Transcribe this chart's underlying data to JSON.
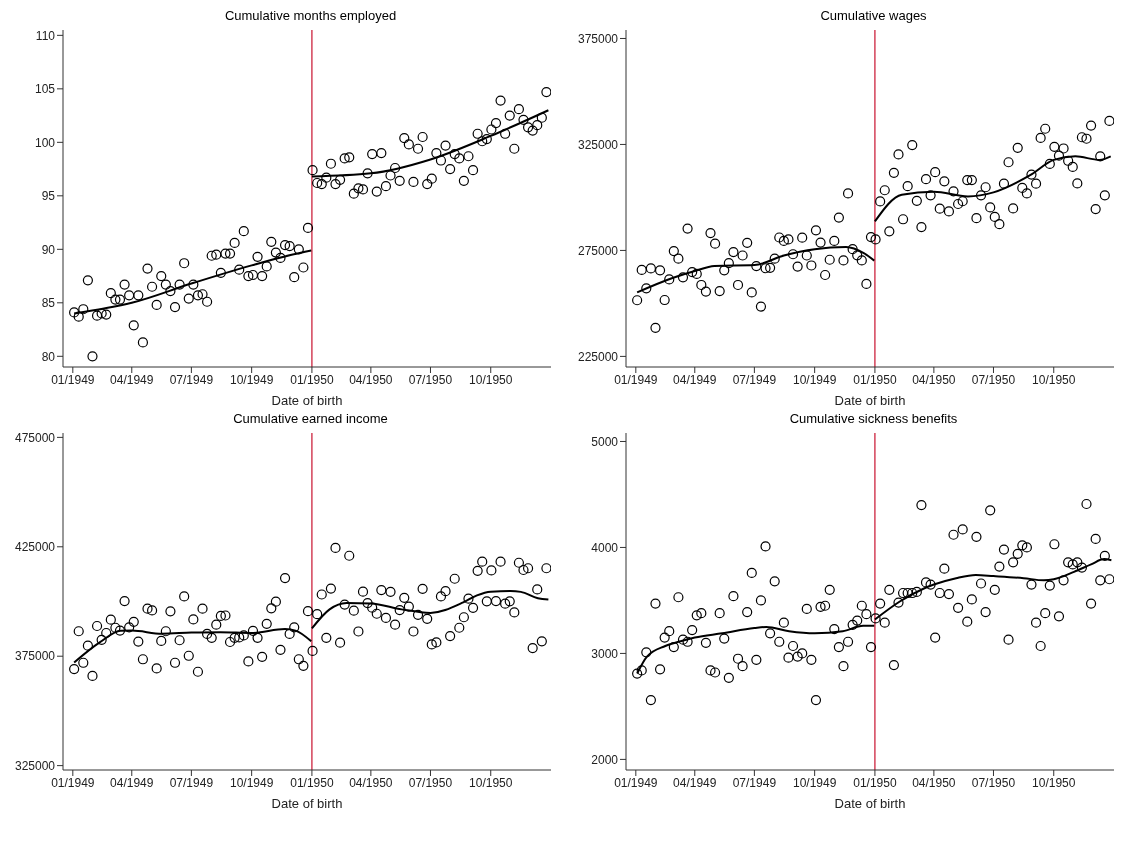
{
  "chart_data": [
    {
      "type": "scatter",
      "title": "Cumulative months employed",
      "xlabel": "Date of birth",
      "x": [
        "1949-01-03",
        "1949-01-10",
        "1949-01-17",
        "1949-01-24",
        "1949-01-31",
        "1949-02-07",
        "1949-02-14",
        "1949-02-21",
        "1949-02-28",
        "1949-03-07",
        "1949-03-14",
        "1949-03-21",
        "1949-03-28",
        "1949-04-04",
        "1949-04-11",
        "1949-04-18",
        "1949-04-25",
        "1949-05-02",
        "1949-05-09",
        "1949-05-16",
        "1949-05-23",
        "1949-05-30",
        "1949-06-06",
        "1949-06-13",
        "1949-06-20",
        "1949-06-27",
        "1949-07-04",
        "1949-07-11",
        "1949-07-18",
        "1949-07-25",
        "1949-08-01",
        "1949-08-08",
        "1949-08-15",
        "1949-08-22",
        "1949-08-29",
        "1949-09-05",
        "1949-09-12",
        "1949-09-19",
        "1949-09-26",
        "1949-10-03",
        "1949-10-10",
        "1949-10-17",
        "1949-10-24",
        "1949-10-31",
        "1949-11-07",
        "1949-11-14",
        "1949-11-21",
        "1949-11-28",
        "1949-12-05",
        "1949-12-12",
        "1949-12-19",
        "1949-12-26",
        "1950-01-02",
        "1950-01-09",
        "1950-01-16",
        "1950-01-23",
        "1950-01-30",
        "1950-02-06",
        "1950-02-13",
        "1950-02-20",
        "1950-02-27",
        "1950-03-06",
        "1950-03-13",
        "1950-03-20",
        "1950-03-27",
        "1950-04-03",
        "1950-04-10",
        "1950-04-17",
        "1950-04-24",
        "1950-05-01",
        "1950-05-08",
        "1950-05-15",
        "1950-05-22",
        "1950-05-29",
        "1950-06-05",
        "1950-06-12",
        "1950-06-19",
        "1950-06-26",
        "1950-07-03",
        "1950-07-10",
        "1950-07-17",
        "1950-07-24",
        "1950-07-31",
        "1950-08-07",
        "1950-08-14",
        "1950-08-21",
        "1950-08-28",
        "1950-09-04",
        "1950-09-11",
        "1950-09-18",
        "1950-09-25",
        "1950-10-02",
        "1950-10-09",
        "1950-10-16",
        "1950-10-23",
        "1950-10-30",
        "1950-11-06",
        "1950-11-13",
        "1950-11-20",
        "1950-11-27",
        "1950-12-04",
        "1950-12-11",
        "1950-12-18",
        "1950-12-25"
      ],
      "series": [
        {
          "type": "scatter",
          "marker": "circle",
          "color": "#000000",
          "values": [
            84.1,
            83.7,
            84.4,
            87.1,
            80.0,
            83.8,
            84.0,
            83.9,
            85.9,
            85.3,
            85.3,
            86.7,
            85.7,
            82.9,
            85.7,
            81.3,
            88.2,
            86.5,
            84.8,
            87.5,
            86.7,
            86.1,
            84.6,
            86.7,
            88.7,
            85.4,
            86.7,
            85.7,
            85.8,
            85.1,
            89.4,
            89.5,
            87.8,
            89.6,
            89.6,
            90.6,
            88.1,
            91.7,
            87.5,
            87.6,
            89.3,
            87.5,
            88.4,
            90.7,
            89.7,
            89.2,
            90.4,
            90.3,
            87.4,
            90.0,
            88.3,
            92.0,
            97.4,
            96.2,
            96.1,
            96.7,
            98.0,
            96.1,
            96.5,
            98.5,
            98.6,
            95.2,
            95.7,
            95.6,
            97.1,
            98.9,
            95.4,
            99.0,
            95.9,
            96.9,
            97.6,
            96.4,
            100.4,
            99.8,
            96.3,
            99.4,
            100.5,
            96.1,
            96.6,
            99.0,
            98.3,
            99.7,
            97.5,
            98.9,
            98.5,
            96.4,
            98.7,
            97.4,
            100.8,
            100.1,
            100.3,
            101.2,
            101.8,
            103.9,
            100.8,
            102.5,
            99.4,
            103.1,
            102.1,
            101.4,
            101.1,
            101.6,
            102.3,
            104.7
          ]
        },
        {
          "type": "line",
          "color": "#000000",
          "x": [
            "1949-01-03",
            "1949-04-01",
            "1949-07-01",
            "1949-10-01",
            "1949-12-01",
            "1949-12-31"
          ],
          "values": [
            84.0,
            85.0,
            86.8,
            88.5,
            89.5,
            89.9
          ]
        },
        {
          "type": "line",
          "color": "#000000",
          "x": [
            "1950-01-01",
            "1950-04-01",
            "1950-07-01",
            "1950-10-01",
            "1950-12-28"
          ],
          "values": [
            96.8,
            97.1,
            98.4,
            100.6,
            103.0
          ]
        }
      ],
      "xlim": [
        "1948-12-17",
        "1951-01-01"
      ],
      "xticks": [
        {
          "value": "1949-01-01",
          "label": "01/1949"
        },
        {
          "value": "1949-04-01",
          "label": "04/1949"
        },
        {
          "value": "1949-07-01",
          "label": "07/1949"
        },
        {
          "value": "1949-10-01",
          "label": "10/1949"
        },
        {
          "value": "1950-01-01",
          "label": "01/1950"
        },
        {
          "value": "1950-04-01",
          "label": "04/1950"
        },
        {
          "value": "1950-07-01",
          "label": "07/1950"
        },
        {
          "value": "1950-10-01",
          "label": "10/1950"
        }
      ],
      "ylim": [
        79,
        110.5
      ],
      "yticks": [
        80,
        85,
        90,
        95,
        100,
        105,
        110
      ],
      "ref_lines": [
        {
          "axis": "x",
          "value": "1950-01-01",
          "color": "#c8102e"
        }
      ]
    },
    {
      "type": "scatter",
      "title": "Cumulative wages",
      "xlabel": "Date of birth",
      "x": [
        "1949-01-03",
        "1949-01-10",
        "1949-01-17",
        "1949-01-24",
        "1949-01-31",
        "1949-02-07",
        "1949-02-14",
        "1949-02-21",
        "1949-02-28",
        "1949-03-07",
        "1949-03-14",
        "1949-03-21",
        "1949-03-28",
        "1949-04-04",
        "1949-04-11",
        "1949-04-18",
        "1949-04-25",
        "1949-05-02",
        "1949-05-09",
        "1949-05-16",
        "1949-05-23",
        "1949-05-30",
        "1949-06-06",
        "1949-06-13",
        "1949-06-20",
        "1949-06-27",
        "1949-07-04",
        "1949-07-11",
        "1949-07-18",
        "1949-07-25",
        "1949-08-01",
        "1949-08-08",
        "1949-08-15",
        "1949-08-22",
        "1949-08-29",
        "1949-09-05",
        "1949-09-12",
        "1949-09-19",
        "1949-09-26",
        "1949-10-03",
        "1949-10-10",
        "1949-10-17",
        "1949-10-24",
        "1949-10-31",
        "1949-11-07",
        "1949-11-14",
        "1949-11-21",
        "1949-11-28",
        "1949-12-05",
        "1949-12-12",
        "1949-12-19",
        "1949-12-26",
        "1950-01-02",
        "1950-01-09",
        "1950-01-16",
        "1950-01-23",
        "1950-01-30",
        "1950-02-06",
        "1950-02-13",
        "1950-02-20",
        "1950-02-27",
        "1950-03-06",
        "1950-03-13",
        "1950-03-20",
        "1950-03-27",
        "1950-04-03",
        "1950-04-10",
        "1950-04-17",
        "1950-04-24",
        "1950-05-01",
        "1950-05-08",
        "1950-05-15",
        "1950-05-22",
        "1950-05-29",
        "1950-06-05",
        "1950-06-12",
        "1950-06-19",
        "1950-06-26",
        "1950-07-03",
        "1950-07-10",
        "1950-07-17",
        "1950-07-24",
        "1950-07-31",
        "1950-08-07",
        "1950-08-14",
        "1950-08-21",
        "1950-08-28",
        "1950-09-04",
        "1950-09-11",
        "1950-09-18",
        "1950-09-25",
        "1950-10-02",
        "1950-10-09",
        "1950-10-16",
        "1950-10-23",
        "1950-10-30",
        "1950-11-06",
        "1950-11-13",
        "1950-11-20",
        "1950-11-27",
        "1950-12-04",
        "1950-12-11",
        "1950-12-18",
        "1950-12-25"
      ],
      "series": [
        {
          "type": "scatter",
          "marker": "circle",
          "color": "#000000",
          "values": [
            251500,
            265800,
            257100,
            266500,
            238500,
            265600,
            251600,
            261300,
            274700,
            271100,
            262300,
            285300,
            264800,
            263900,
            258700,
            255600,
            283200,
            278200,
            255800,
            265600,
            269000,
            274200,
            258700,
            272600,
            278600,
            255200,
            267600,
            248500,
            266600,
            266800,
            271100,
            281100,
            279500,
            280200,
            273200,
            267400,
            281000,
            272600,
            267900,
            284500,
            278700,
            263400,
            270600,
            279500,
            290500,
            270300,
            301900,
            275600,
            272700,
            270300,
            259200,
            281300,
            280200,
            298100,
            303400,
            284000,
            311600,
            320300,
            289700,
            305300,
            324700,
            298400,
            286000,
            308600,
            301000,
            311900,
            294700,
            307600,
            293400,
            302900,
            296900,
            298200,
            308200,
            308200,
            290200,
            301000,
            304800,
            295300,
            290800,
            287400,
            306500,
            316600,
            294800,
            323400,
            304500,
            301900,
            310800,
            306500,
            328100,
            332400,
            315800,
            323900,
            319700,
            323100,
            317300,
            314400,
            306600,
            328400,
            327700,
            333900,
            294500,
            319400,
            301000,
            336100
          ]
        },
        {
          "type": "line",
          "color": "#000000",
          "x": [
            "1949-01-03",
            "1949-02-26",
            "1949-04-01",
            "1949-05-01",
            "1949-07-01",
            "1949-08-15",
            "1949-10-01",
            "1949-11-18",
            "1949-12-15",
            "1949-12-31"
          ],
          "values": [
            255200,
            262000,
            265300,
            267700,
            268100,
            272600,
            275600,
            276600,
            273700,
            270200
          ]
        },
        {
          "type": "line",
          "color": "#000000",
          "x": [
            "1950-01-01",
            "1950-02-11",
            "1950-04-01",
            "1950-05-23",
            "1950-07-01",
            "1950-08-26",
            "1950-10-01",
            "1950-11-03",
            "1950-12-10",
            "1950-12-27"
          ],
          "values": [
            288700,
            301300,
            302700,
            300500,
            302400,
            310500,
            317700,
            319400,
            317700,
            319400
          ]
        }
      ],
      "xlim": [
        "1948-12-17",
        "1951-01-01"
      ],
      "xticks": [
        {
          "value": "1949-01-01",
          "label": "01/1949"
        },
        {
          "value": "1949-04-01",
          "label": "04/1949"
        },
        {
          "value": "1949-07-01",
          "label": "07/1949"
        },
        {
          "value": "1949-10-01",
          "label": "10/1949"
        },
        {
          "value": "1950-01-01",
          "label": "01/1950"
        },
        {
          "value": "1950-04-01",
          "label": "04/1950"
        },
        {
          "value": "1950-07-01",
          "label": "07/1950"
        },
        {
          "value": "1950-10-01",
          "label": "10/1950"
        }
      ],
      "ylim": [
        220000,
        379000
      ],
      "yticks": [
        225000,
        275000,
        325000,
        375000
      ],
      "ref_lines": [
        {
          "axis": "x",
          "value": "1950-01-01",
          "color": "#c8102e"
        }
      ]
    },
    {
      "type": "scatter",
      "title": "Cumulative earned income",
      "xlabel": "Date of birth",
      "x": [
        "1949-01-03",
        "1949-01-10",
        "1949-01-17",
        "1949-01-24",
        "1949-01-31",
        "1949-02-07",
        "1949-02-14",
        "1949-02-21",
        "1949-02-28",
        "1949-03-07",
        "1949-03-14",
        "1949-03-21",
        "1949-03-28",
        "1949-04-04",
        "1949-04-11",
        "1949-04-18",
        "1949-04-25",
        "1949-05-02",
        "1949-05-09",
        "1949-05-16",
        "1949-05-23",
        "1949-05-30",
        "1949-06-06",
        "1949-06-13",
        "1949-06-20",
        "1949-06-27",
        "1949-07-04",
        "1949-07-11",
        "1949-07-18",
        "1949-07-25",
        "1949-08-01",
        "1949-08-08",
        "1949-08-15",
        "1949-08-22",
        "1949-08-29",
        "1949-09-05",
        "1949-09-12",
        "1949-09-19",
        "1949-09-26",
        "1949-10-03",
        "1949-10-10",
        "1949-10-17",
        "1949-10-24",
        "1949-10-31",
        "1949-11-07",
        "1949-11-14",
        "1949-11-21",
        "1949-11-28",
        "1949-12-05",
        "1949-12-12",
        "1949-12-19",
        "1949-12-26",
        "1950-01-02",
        "1950-01-09",
        "1950-01-16",
        "1950-01-23",
        "1950-01-30",
        "1950-02-06",
        "1950-02-13",
        "1950-02-20",
        "1950-02-27",
        "1950-03-06",
        "1950-03-13",
        "1950-03-20",
        "1950-03-27",
        "1950-04-03",
        "1950-04-10",
        "1950-04-17",
        "1950-04-24",
        "1950-05-01",
        "1950-05-08",
        "1950-05-15",
        "1950-05-22",
        "1950-05-29",
        "1950-06-05",
        "1950-06-12",
        "1950-06-19",
        "1950-06-26",
        "1950-07-03",
        "1950-07-10",
        "1950-07-17",
        "1950-07-24",
        "1950-07-31",
        "1950-08-07",
        "1950-08-14",
        "1950-08-21",
        "1950-08-28",
        "1950-09-04",
        "1950-09-11",
        "1950-09-18",
        "1950-09-25",
        "1950-10-02",
        "1950-10-09",
        "1950-10-16",
        "1950-10-23",
        "1950-10-30",
        "1950-11-06",
        "1950-11-13",
        "1950-11-20",
        "1950-11-27",
        "1950-12-04",
        "1950-12-11",
        "1950-12-18",
        "1950-12-25"
      ],
      "series": [
        {
          "type": "scatter",
          "marker": "circle",
          "color": "#000000",
          "values": [
            369100,
            386400,
            372000,
            379800,
            366000,
            388800,
            382500,
            385600,
            391700,
            388000,
            386700,
            400200,
            388200,
            390700,
            381700,
            373600,
            396700,
            395900,
            369400,
            382000,
            386400,
            395500,
            372000,
            382300,
            402300,
            375200,
            391800,
            367900,
            396700,
            385200,
            383400,
            389400,
            393400,
            393600,
            381500,
            383400,
            383600,
            384500,
            372600,
            386600,
            383400,
            374700,
            389800,
            396900,
            399900,
            377900,
            410700,
            385200,
            388200,
            373600,
            370600,
            395600,
            377400,
            394200,
            403200,
            383400,
            405900,
            424500,
            381200,
            398600,
            420900,
            395800,
            386300,
            404500,
            399300,
            397200,
            394400,
            405200,
            392500,
            404400,
            389400,
            396100,
            401700,
            397700,
            386300,
            393900,
            405800,
            392100,
            380400,
            381300,
            402300,
            404700,
            384200,
            410400,
            388000,
            392800,
            401300,
            397100,
            414000,
            418200,
            400100,
            414200,
            400200,
            418200,
            399000,
            400100,
            395000,
            417700,
            414400,
            415200,
            378700,
            405500,
            381800,
            415200
          ]
        },
        {
          "type": "line",
          "color": "#000000",
          "x": [
            "1949-01-03",
            "1949-02-11",
            "1949-03-15",
            "1949-04-01",
            "1949-05-17",
            "1949-07-01",
            "1949-08-14",
            "1949-10-01",
            "1949-11-21",
            "1949-12-07",
            "1949-12-31"
          ],
          "values": [
            372100,
            381300,
            386600,
            386700,
            385300,
            385800,
            386000,
            385600,
            387400,
            386700,
            381800
          ]
        },
        {
          "type": "line",
          "color": "#000000",
          "x": [
            "1950-01-01",
            "1950-01-28",
            "1950-02-23",
            "1950-04-01",
            "1950-05-18",
            "1950-07-01",
            "1950-08-20",
            "1950-09-10",
            "1950-10-01",
            "1950-10-31",
            "1950-11-16",
            "1950-12-12",
            "1950-12-28"
          ],
          "values": [
            387700,
            396400,
            399300,
            399100,
            396400,
            394800,
            399600,
            402800,
            404500,
            404800,
            404400,
            401500,
            400900
          ]
        }
      ],
      "xlim": [
        "1948-12-17",
        "1951-01-01"
      ],
      "xticks": [
        {
          "value": "1949-01-01",
          "label": "01/1949"
        },
        {
          "value": "1949-04-01",
          "label": "04/1949"
        },
        {
          "value": "1949-07-01",
          "label": "07/1949"
        },
        {
          "value": "1949-10-01",
          "label": "10/1949"
        },
        {
          "value": "1950-01-01",
          "label": "01/1950"
        },
        {
          "value": "1950-04-01",
          "label": "04/1950"
        },
        {
          "value": "1950-07-01",
          "label": "07/1950"
        },
        {
          "value": "1950-10-01",
          "label": "10/1950"
        }
      ],
      "ylim": [
        323000,
        477000
      ],
      "yticks": [
        325000,
        375000,
        425000,
        475000
      ],
      "ref_lines": [
        {
          "axis": "x",
          "value": "1950-01-01",
          "color": "#c8102e"
        }
      ]
    },
    {
      "type": "scatter",
      "title": "Cumulative sickness benefits",
      "xlabel": "Date of birth",
      "x": [
        "1949-01-03",
        "1949-01-10",
        "1949-01-17",
        "1949-01-24",
        "1949-01-31",
        "1949-02-07",
        "1949-02-14",
        "1949-02-21",
        "1949-02-28",
        "1949-03-07",
        "1949-03-14",
        "1949-03-21",
        "1949-03-28",
        "1949-04-04",
        "1949-04-11",
        "1949-04-18",
        "1949-04-25",
        "1949-05-02",
        "1949-05-09",
        "1949-05-16",
        "1949-05-23",
        "1949-05-30",
        "1949-06-06",
        "1949-06-13",
        "1949-06-20",
        "1949-06-27",
        "1949-07-04",
        "1949-07-11",
        "1949-07-18",
        "1949-07-25",
        "1949-08-01",
        "1949-08-08",
        "1949-08-15",
        "1949-08-22",
        "1949-08-29",
        "1949-09-05",
        "1949-09-12",
        "1949-09-19",
        "1949-09-26",
        "1949-10-03",
        "1949-10-10",
        "1949-10-17",
        "1949-10-24",
        "1949-10-31",
        "1949-11-07",
        "1949-11-14",
        "1949-11-21",
        "1949-11-28",
        "1949-12-05",
        "1949-12-12",
        "1949-12-19",
        "1949-12-26",
        "1950-01-02",
        "1950-01-09",
        "1950-01-16",
        "1950-01-23",
        "1950-01-30",
        "1950-02-06",
        "1950-02-13",
        "1950-02-20",
        "1950-02-27",
        "1950-03-06",
        "1950-03-13",
        "1950-03-20",
        "1950-03-27",
        "1950-04-03",
        "1950-04-10",
        "1950-04-17",
        "1950-04-24",
        "1950-05-01",
        "1950-05-08",
        "1950-05-15",
        "1950-05-22",
        "1950-05-29",
        "1950-06-05",
        "1950-06-12",
        "1950-06-19",
        "1950-06-26",
        "1950-07-03",
        "1950-07-10",
        "1950-07-17",
        "1950-07-24",
        "1950-07-31",
        "1950-08-07",
        "1950-08-14",
        "1950-08-21",
        "1950-08-28",
        "1950-09-04",
        "1950-09-11",
        "1950-09-18",
        "1950-09-25",
        "1950-10-02",
        "1950-10-09",
        "1950-10-16",
        "1950-10-23",
        "1950-10-30",
        "1950-11-06",
        "1950-11-13",
        "1950-11-20",
        "1950-11-27",
        "1950-12-04",
        "1950-12-11",
        "1950-12-18",
        "1950-12-25"
      ],
      "series": [
        {
          "type": "scatter",
          "marker": "circle",
          "color": "#000000",
          "values": [
            2810,
            2840,
            3010,
            2560,
            3470,
            2850,
            3150,
            3210,
            3060,
            3530,
            3130,
            3110,
            3220,
            3360,
            3380,
            3100,
            2840,
            2820,
            3380,
            3140,
            2770,
            3540,
            2950,
            2880,
            3390,
            3760,
            2940,
            3500,
            4010,
            3190,
            3680,
            3110,
            3290,
            2960,
            3070,
            2970,
            3000,
            3420,
            2940,
            2560,
            3440,
            3450,
            3600,
            3230,
            3060,
            2880,
            3110,
            3270,
            3310,
            3450,
            3370,
            3060,
            3330,
            3470,
            3290,
            3600,
            2890,
            3480,
            3570,
            3570,
            3570,
            3580,
            4400,
            3670,
            3650,
            3150,
            3570,
            3800,
            3560,
            4120,
            3430,
            4170,
            3300,
            3510,
            4100,
            3660,
            3390,
            4350,
            3600,
            3820,
            3980,
            3130,
            3860,
            3940,
            4020,
            4000,
            3650,
            3290,
            3070,
            3380,
            3640,
            4030,
            3350,
            3690,
            3860,
            3840,
            3860,
            3810,
            4410,
            3470,
            4080,
            3690,
            3920,
            3700
          ]
        },
        {
          "type": "line",
          "color": "#000000",
          "x": [
            "1949-01-03",
            "1949-01-18",
            "1949-02-15",
            "1949-03-13",
            "1949-04-01",
            "1949-05-13",
            "1949-07-01",
            "1949-07-19",
            "1949-08-23",
            "1949-10-01",
            "1949-11-13",
            "1949-12-14",
            "1949-12-31"
          ],
          "values": [
            2810,
            2970,
            3070,
            3120,
            3150,
            3190,
            3240,
            3250,
            3210,
            3190,
            3210,
            3260,
            3260
          ]
        },
        {
          "type": "line",
          "color": "#000000",
          "x": [
            "1950-01-01",
            "1950-02-08",
            "1950-03-16",
            "1950-04-01",
            "1950-05-05",
            "1950-06-04",
            "1950-07-01",
            "1950-08-16",
            "1950-09-16",
            "1950-10-01",
            "1950-11-01",
            "1950-11-27",
            "1950-12-17",
            "1950-12-28"
          ],
          "values": [
            3320,
            3490,
            3610,
            3650,
            3710,
            3740,
            3730,
            3710,
            3690,
            3700,
            3770,
            3840,
            3890,
            3880
          ]
        }
      ],
      "xlim": [
        "1948-12-17",
        "1951-01-01"
      ],
      "xticks": [
        {
          "value": "1949-01-01",
          "label": "01/1949"
        },
        {
          "value": "1949-04-01",
          "label": "04/1949"
        },
        {
          "value": "1949-07-01",
          "label": "07/1949"
        },
        {
          "value": "1949-10-01",
          "label": "10/1949"
        },
        {
          "value": "1950-01-01",
          "label": "01/1950"
        },
        {
          "value": "1950-04-01",
          "label": "04/1950"
        },
        {
          "value": "1950-07-01",
          "label": "07/1950"
        },
        {
          "value": "1950-10-01",
          "label": "10/1950"
        }
      ],
      "ylim": [
        1900,
        5080
      ],
      "yticks": [
        2000,
        3000,
        4000,
        5000
      ],
      "ref_lines": [
        {
          "axis": "x",
          "value": "1950-01-01",
          "color": "#c8102e"
        }
      ]
    }
  ]
}
